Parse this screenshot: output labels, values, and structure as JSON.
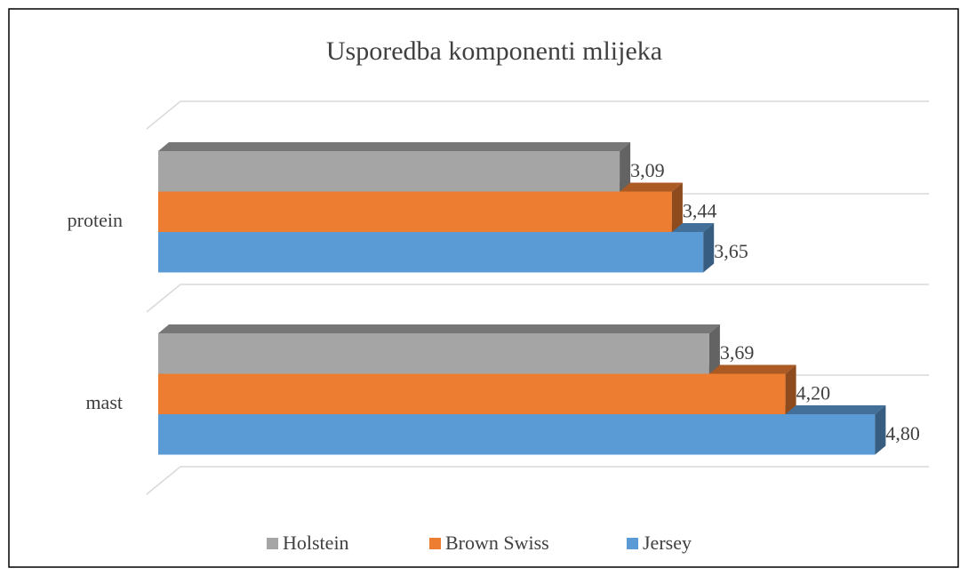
{
  "chart_data": {
    "type": "bar3d",
    "orientation": "horizontal",
    "title": "Usporedba komponenti mlijeka",
    "categories": [
      "protein",
      "mast"
    ],
    "series": [
      {
        "name": "Holstein",
        "color": "#a5a5a5",
        "values": [
          3.09,
          3.69
        ],
        "value_labels": [
          "3,09",
          "3,69"
        ]
      },
      {
        "name": "Brown Swiss",
        "color": "#ed7d31",
        "values": [
          3.44,
          4.2
        ],
        "value_labels": [
          "3,44",
          "4,20"
        ]
      },
      {
        "name": "Jersey",
        "color": "#5b9bd5",
        "values": [
          3.65,
          4.8
        ],
        "value_labels": [
          "3,65",
          "4,80"
        ]
      }
    ],
    "xlim": [
      0,
      5
    ],
    "grid": true,
    "legend": "bottom"
  }
}
